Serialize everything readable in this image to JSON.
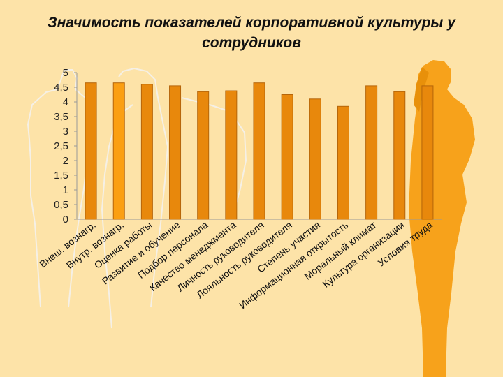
{
  "title": "Значимость показателей корпоративной культуры у сотрудников",
  "colors": {
    "background": "#fde3a8",
    "bar": "#e8880c",
    "bar_highlight": "#fb9f12",
    "bar_stroke": "#b5650a",
    "silhouette_orange": "#f7a21b",
    "silhouette_outline": "#f2f2f2"
  },
  "chart_data": {
    "type": "bar",
    "title": "Значимость показателей корпоративной культуры у сотрудников",
    "xlabel": "",
    "ylabel": "",
    "ylim": [
      0,
      5
    ],
    "yticks": [
      "0",
      "0,5",
      "1",
      "1,5",
      "2",
      "2,5",
      "3",
      "3,5",
      "4",
      "4,5",
      "5"
    ],
    "grid": false,
    "legend": "none",
    "categories": [
      "Внеш. вознагр.",
      "Внутр. вознагр.",
      "Оценка работы",
      "Развитие и обучение",
      "Подбор персонала",
      "Качество менеджмента",
      "Личность руководителя",
      "Лояльность руководителя",
      "Степень участия",
      "Информационная открытость",
      "Моральный климат",
      "Культура организации",
      "Условия труда"
    ],
    "values": [
      4.65,
      4.65,
      4.6,
      4.55,
      4.35,
      4.38,
      4.65,
      4.25,
      4.1,
      3.85,
      4.55,
      4.35,
      4.55
    ],
    "highlight_index": 1
  }
}
